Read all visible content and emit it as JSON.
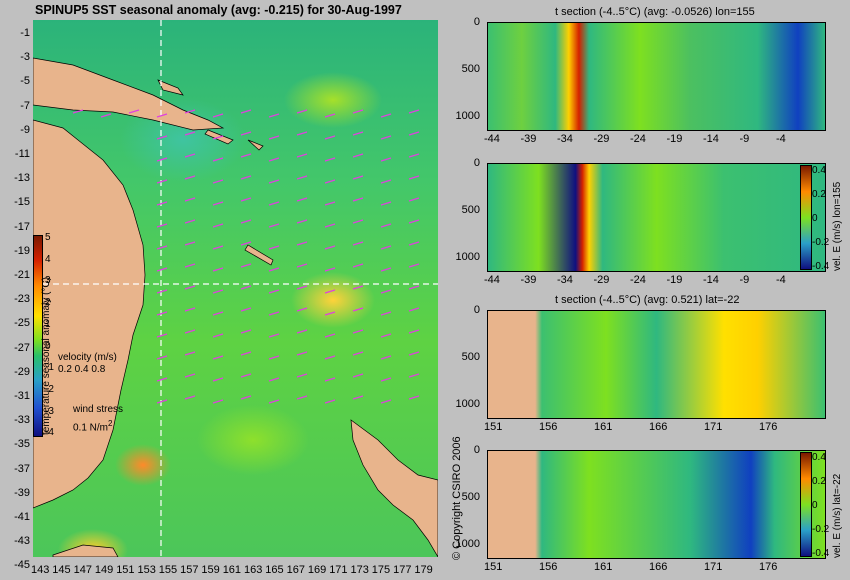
{
  "title": "SPINUP5 SST seasonal anomaly (avg: -0.215) for 30-Aug-1997",
  "map": {
    "lat_labels": [
      "-1",
      "-3",
      "-5",
      "-7",
      "-9",
      "-11",
      "-13",
      "-15",
      "-17",
      "-19",
      "-21",
      "-23",
      "-25",
      "-27",
      "-29",
      "-31",
      "-33",
      "-35",
      "-37",
      "-39",
      "-41",
      "-43",
      "-45"
    ],
    "lon_labels": [
      "143",
      "145",
      "147",
      "149",
      "151",
      "153",
      "155",
      "157",
      "159",
      "161",
      "163",
      "165",
      "167",
      "169",
      "171",
      "173",
      "175",
      "177",
      "179"
    ],
    "colorbar_ticks": [
      "5",
      "4",
      "3",
      "2",
      "1",
      "0",
      "-1",
      "-2",
      "-3",
      "-4"
    ],
    "colorbar_label": "temperature seasonal anomaly (°C)",
    "velocity_label": "velocity (m/s)",
    "velocity_scale": "0.2 0.4 0.8",
    "wind_label": "wind stress",
    "wind_scale": "0.1 N/m",
    "wind_exp": "2"
  },
  "copyright": "© Copyright CSIRO 2006",
  "panels": [
    {
      "title": "t section (-4..5°C) (avg: -0.0526) lon=155",
      "yticks": [
        "0",
        "500",
        "1000"
      ],
      "xticks": [
        "-44",
        "-39",
        "-34",
        "-29",
        "-24",
        "-19",
        "-14",
        "-9",
        "-4"
      ]
    },
    {
      "title": "",
      "yticks": [
        "0",
        "500",
        "1000"
      ],
      "xticks": [
        "-44",
        "-39",
        "-34",
        "-29",
        "-24",
        "-19",
        "-14",
        "-9",
        "-4"
      ],
      "cbar_ticks": [
        "0.4",
        "0.2",
        "0",
        "-0.2",
        "-0.4"
      ],
      "cbar_label": "vel. E (m/s) lon=155"
    },
    {
      "title": "t section (-4..5°C) (avg: 0.521) lat=-22",
      "yticks": [
        "0",
        "500",
        "1000"
      ],
      "xticks": [
        "151",
        "156",
        "161",
        "166",
        "171",
        "176"
      ]
    },
    {
      "title": "",
      "yticks": [
        "0",
        "500",
        "1000"
      ],
      "xticks": [
        "151",
        "156",
        "161",
        "166",
        "171",
        "176"
      ],
      "cbar_ticks": [
        "0.4",
        "0.2",
        "0",
        "-0.2",
        "-0.4"
      ],
      "cbar_label": "vel. E (m/s) lat=-22"
    }
  ],
  "colors": {
    "land": "#e8b48c",
    "background": "#c0c0c0"
  }
}
